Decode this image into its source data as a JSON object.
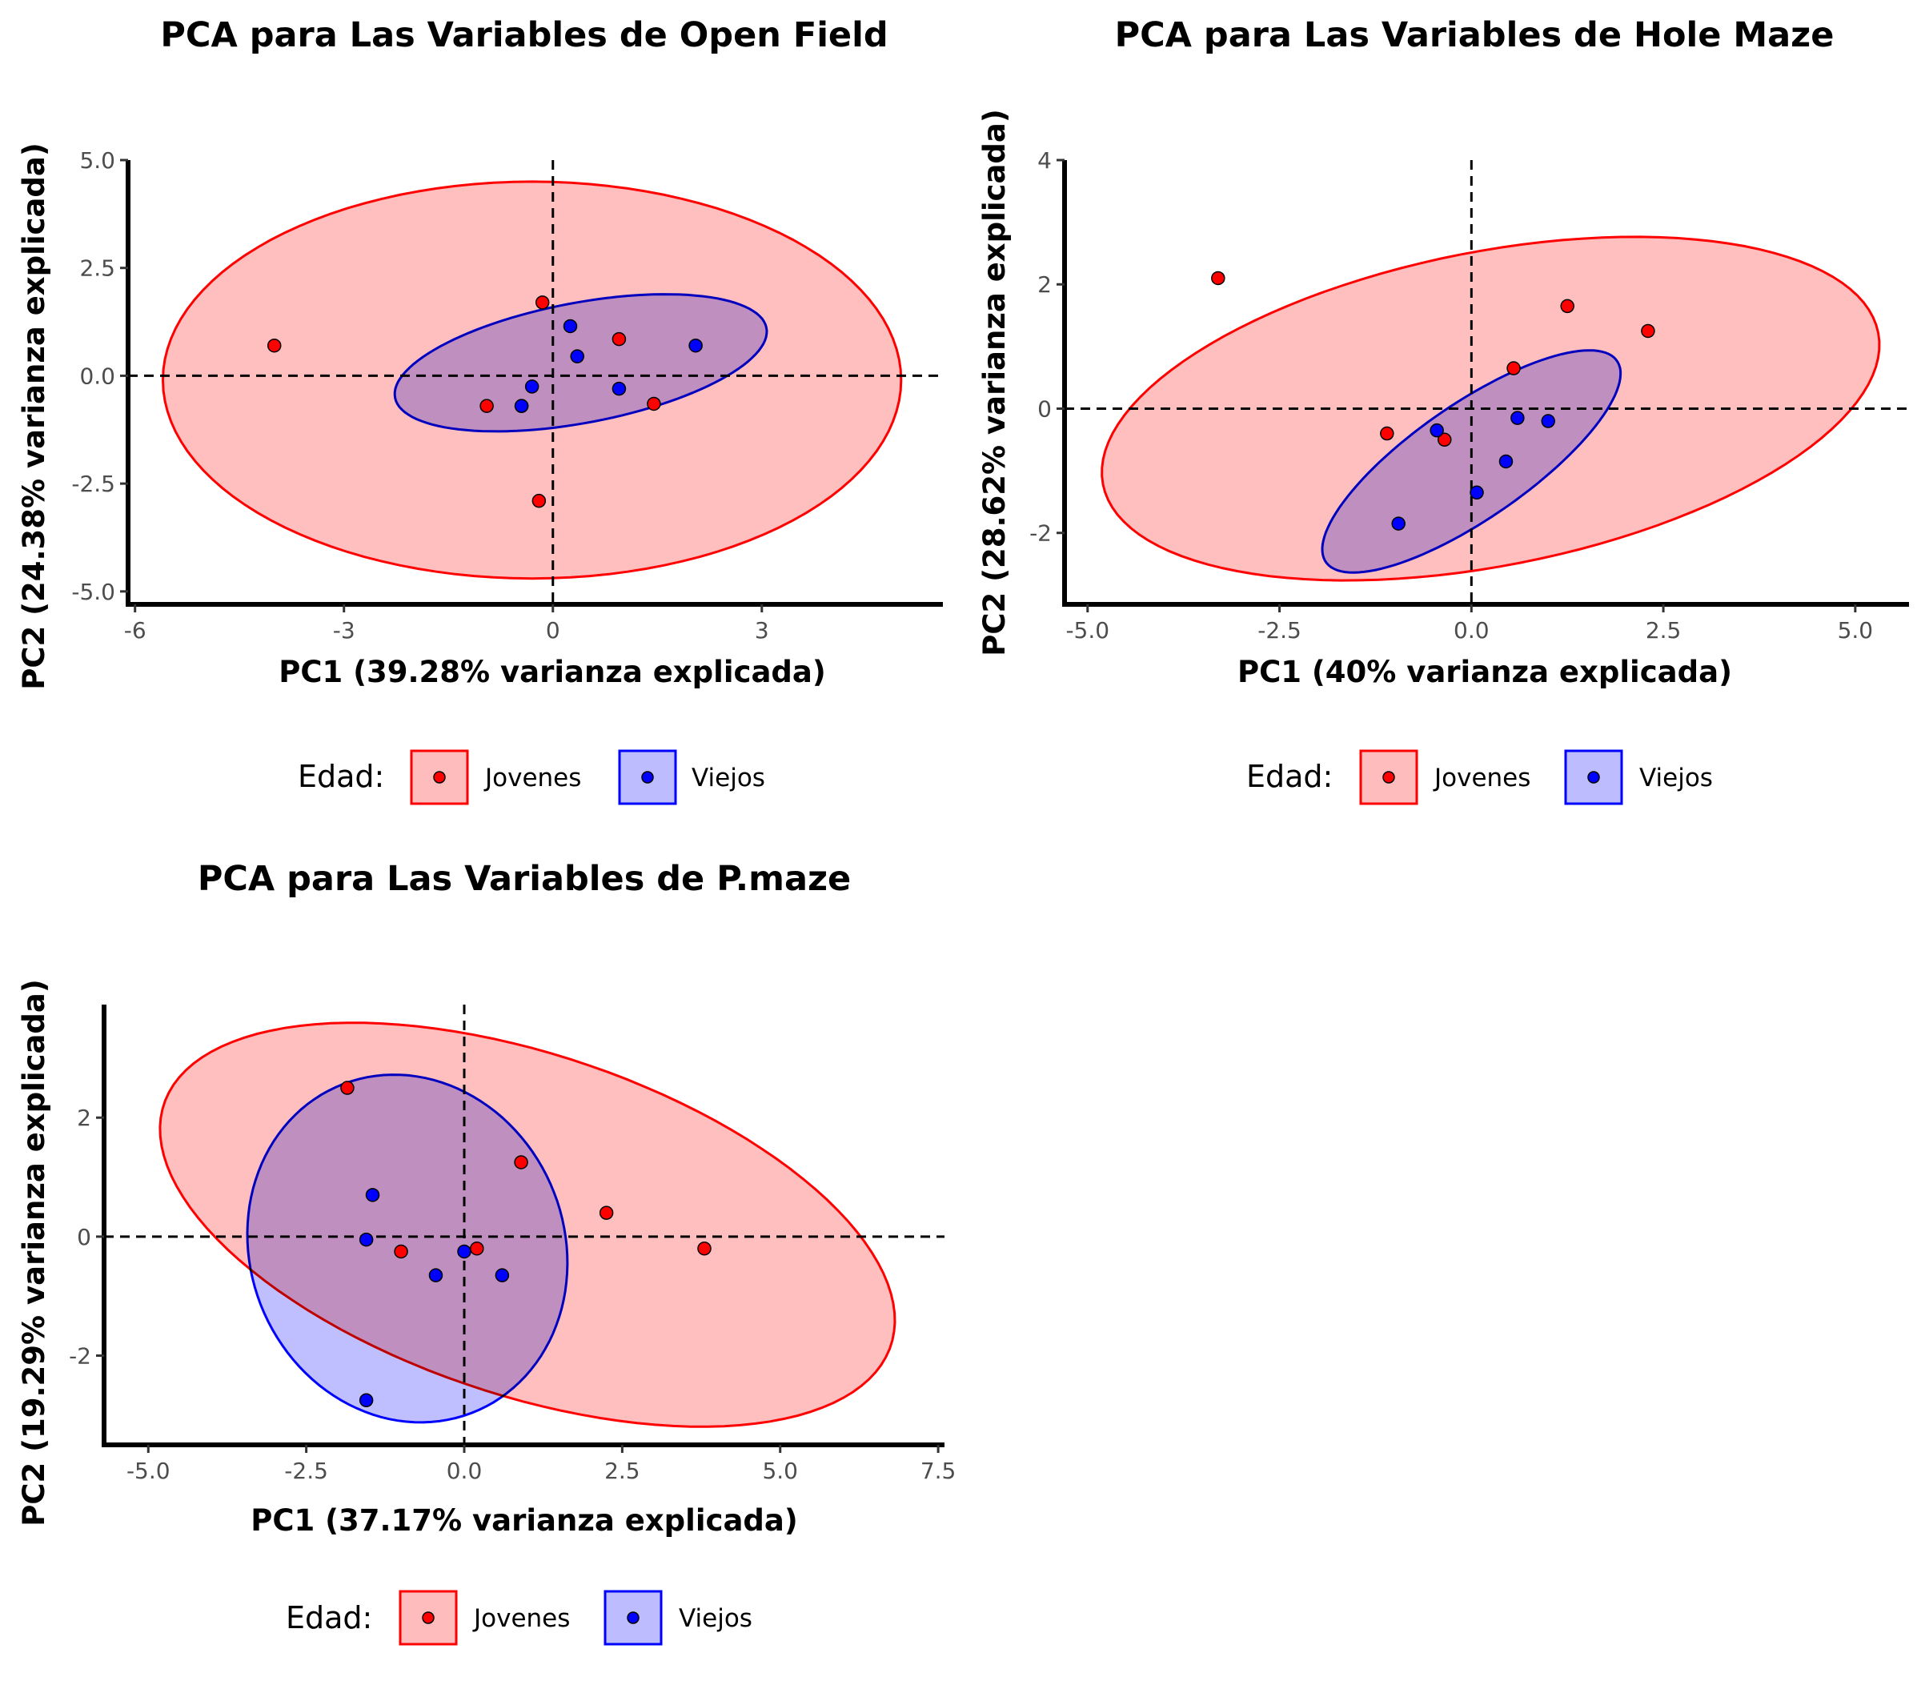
{
  "legend": {
    "title": "Edad:",
    "groups": [
      {
        "key": "jovenes",
        "label": "Jovenes",
        "line_color": "#ff0000",
        "fill_color": "#ffbcbc",
        "point_color": "#ff0000"
      },
      {
        "key": "viejos",
        "label": "Viejos",
        "line_color": "#0000ff",
        "fill_color": "#bcbcff",
        "point_color": "#0000ff"
      }
    ]
  },
  "chart_data": [
    {
      "type": "scatter",
      "title": "PCA para Las Variables de Open Field",
      "xlabel": "PC1 (39.28% varianza explicada)",
      "ylabel": "PC2 (24.38% varianza explicada)",
      "xlim": [
        -6.1,
        5.6
      ],
      "ylim": [
        -5.3,
        5.0
      ],
      "xticks": [
        -6,
        -3,
        0,
        3
      ],
      "xtick_labels": [
        "-6",
        "-3",
        "0",
        "3"
      ],
      "yticks": [
        -5,
        -2.5,
        0,
        2.5,
        5
      ],
      "ytick_labels": [
        "-5.0",
        "-2.5",
        "0.0",
        "2.5",
        "5.0"
      ],
      "reference_lines": {
        "x": 0,
        "y": 0,
        "style": "dashed"
      },
      "legend_position": "bottom",
      "series": [
        {
          "name": "Jovenes",
          "points": [
            [
              -4.0,
              0.7
            ],
            [
              -0.15,
              1.7
            ],
            [
              -0.95,
              -0.7
            ],
            [
              0.95,
              0.85
            ],
            [
              1.45,
              -0.65
            ],
            [
              -0.2,
              -2.9
            ],
            [
              -0.45,
              -0.7
            ]
          ],
          "ellipse": {
            "center": [
              -0.3,
              -0.1
            ],
            "semi_axes": [
              5.3,
              4.6
            ],
            "angle_deg": 0
          }
        },
        {
          "name": "Viejos",
          "points": [
            [
              -0.3,
              -0.25
            ],
            [
              0.25,
              1.15
            ],
            [
              0.35,
              0.45
            ],
            [
              0.95,
              -0.3
            ],
            [
              2.05,
              0.7
            ],
            [
              -0.45,
              -0.7
            ]
          ],
          "ellipse": {
            "center": [
              0.4,
              0.3
            ],
            "semi_axes": [
              2.8,
              1.35
            ],
            "angle_deg": 20
          }
        }
      ]
    },
    {
      "type": "scatter",
      "title": "PCA para Las Variables de Hole Maze",
      "xlabel": "PC1 (40% varianza explicada)",
      "ylabel": "PC2 (28.62% varianza explicada)",
      "xlim": [
        -5.3,
        5.7
      ],
      "ylim": [
        -3.15,
        4.0
      ],
      "xticks": [
        -5,
        -2.5,
        0,
        2.5,
        5
      ],
      "xtick_labels": [
        "-5.0",
        "-2.5",
        "0.0",
        "2.5",
        "5.0"
      ],
      "yticks": [
        -2,
        0,
        2,
        4
      ],
      "ytick_labels": [
        "-2",
        "0",
        "2",
        "4"
      ],
      "reference_lines": {
        "x": 0,
        "y": 0,
        "style": "dashed"
      },
      "legend_position": "bottom",
      "series": [
        {
          "name": "Jovenes",
          "points": [
            [
              -3.3,
              2.1
            ],
            [
              1.25,
              1.65
            ],
            [
              2.3,
              1.25
            ],
            [
              0.55,
              0.65
            ],
            [
              -1.1,
              -0.4
            ],
            [
              -0.35,
              -0.5
            ]
          ],
          "ellipse": {
            "center": [
              0.25,
              0.0
            ],
            "semi_axes": [
              5.2,
              2.5
            ],
            "angle_deg": 15
          }
        },
        {
          "name": "Viejos",
          "points": [
            [
              -0.45,
              -0.35
            ],
            [
              0.6,
              -0.15
            ],
            [
              1.0,
              -0.2
            ],
            [
              0.45,
              -0.85
            ],
            [
              0.07,
              -1.35
            ],
            [
              -0.95,
              -1.85
            ]
          ],
          "ellipse": {
            "center": [
              0.0,
              -0.85
            ],
            "semi_axes": [
              2.5,
              0.85
            ],
            "angle_deg": 42
          }
        }
      ]
    },
    {
      "type": "scatter",
      "title": "PCA para Las Variables de P.maze",
      "xlabel": "PC1 (37.17% varianza explicada)",
      "ylabel": "PC2 (19.29% varianza explicada)",
      "xlim": [
        -5.7,
        7.6
      ],
      "ylim": [
        -3.5,
        3.9
      ],
      "xticks": [
        -5,
        -2.5,
        0,
        2.5,
        5,
        7.5
      ],
      "xtick_labels": [
        "-5.0",
        "-2.5",
        "0.0",
        "2.5",
        "5.0",
        "7.5"
      ],
      "yticks": [
        -2,
        0,
        2
      ],
      "ytick_labels": [
        "-2",
        "0",
        "2"
      ],
      "reference_lines": {
        "x": 0,
        "y": 0,
        "style": "dashed"
      },
      "legend_position": "bottom",
      "series": [
        {
          "name": "Jovenes",
          "points": [
            [
              -1.85,
              2.5
            ],
            [
              0.9,
              1.25
            ],
            [
              2.25,
              0.4
            ],
            [
              3.8,
              -0.2
            ],
            [
              0.2,
              -0.2
            ],
            [
              -1.0,
              -0.25
            ]
          ],
          "ellipse": {
            "center": [
              1.0,
              0.2
            ],
            "semi_axes": [
              6.1,
              2.85
            ],
            "angle_deg": -20
          }
        },
        {
          "name": "Viejos",
          "points": [
            [
              -1.45,
              0.7
            ],
            [
              -1.55,
              -0.05
            ],
            [
              0.0,
              -0.25
            ],
            [
              -0.45,
              -0.65
            ],
            [
              0.6,
              -0.65
            ],
            [
              -1.55,
              -2.75
            ]
          ],
          "ellipse": {
            "center": [
              -0.9,
              -0.2
            ],
            "semi_axes": [
              2.95,
              2.5
            ],
            "angle_deg": -75
          }
        }
      ]
    }
  ]
}
